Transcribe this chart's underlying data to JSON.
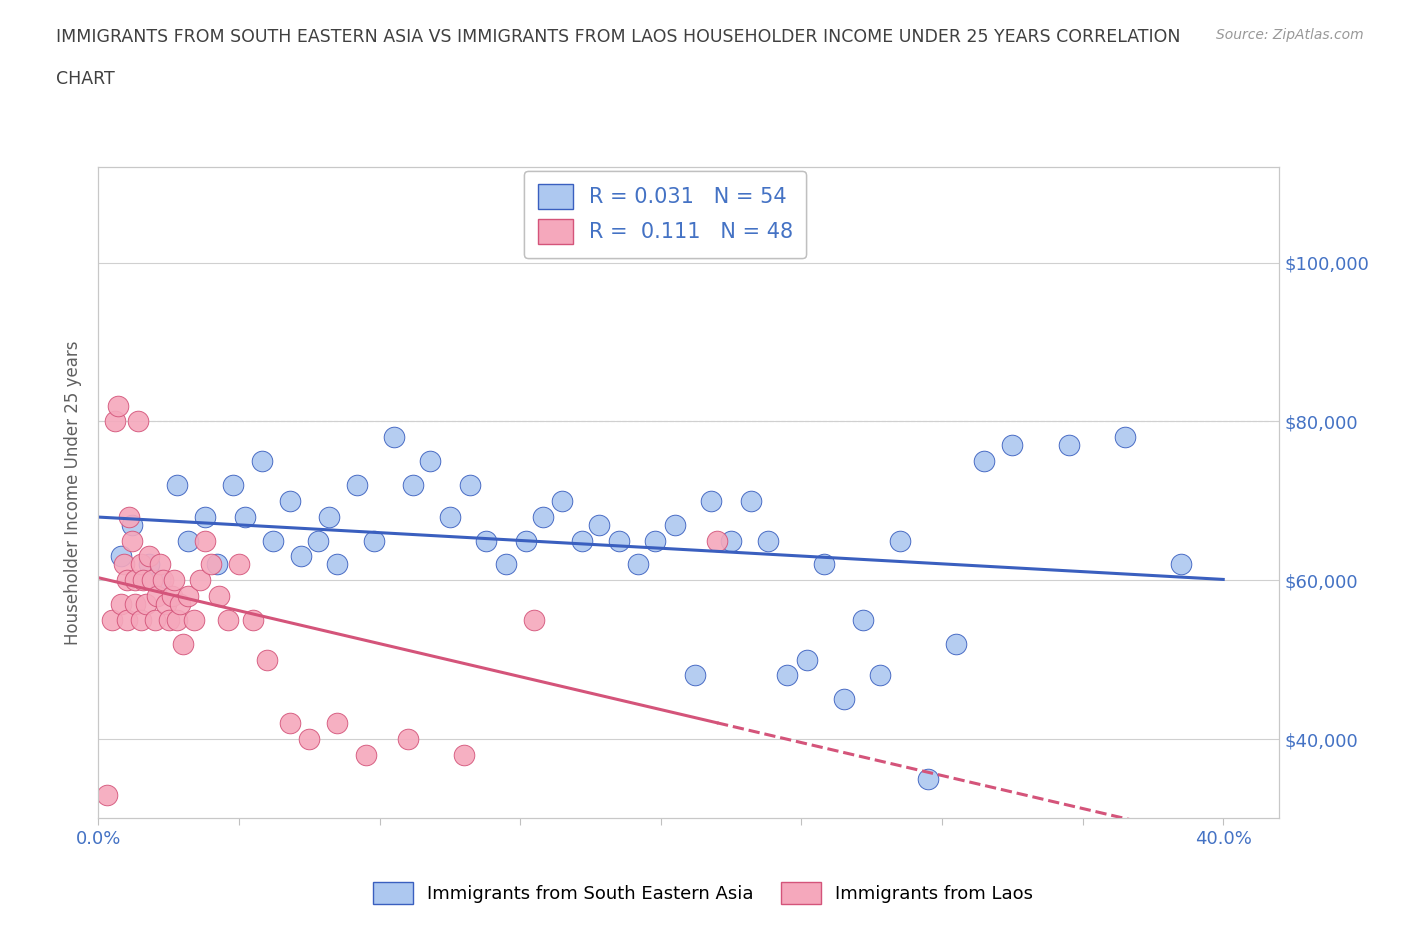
{
  "title_line1": "IMMIGRANTS FROM SOUTH EASTERN ASIA VS IMMIGRANTS FROM LAOS HOUSEHOLDER INCOME UNDER 25 YEARS CORRELATION",
  "title_line2": "CHART",
  "source": "Source: ZipAtlas.com",
  "ylabel": "Householder Income Under 25 years",
  "xlim": [
    0.0,
    0.42
  ],
  "ylim": [
    30000,
    112000
  ],
  "yticks": [
    40000,
    60000,
    80000,
    100000
  ],
  "ytick_labels": [
    "$40,000",
    "$60,000",
    "$80,000",
    "$100,000"
  ],
  "xticks": [
    0.0,
    0.05,
    0.1,
    0.15,
    0.2,
    0.25,
    0.3,
    0.35,
    0.4
  ],
  "legend_label1": "Immigrants from South Eastern Asia",
  "legend_label2": "Immigrants from Laos",
  "R1": 0.031,
  "N1": 54,
  "R2": 0.111,
  "N2": 48,
  "color1": "#adc8f0",
  "color2": "#f5a8bc",
  "line_color1": "#3a5fbf",
  "line_color2": "#d4547a",
  "title_color": "#404040",
  "axis_label_color": "#606060",
  "blue_tick_color": "#4472c4",
  "background_color": "#ffffff",
  "grid_color": "#d0d0d0",
  "sea_x": [
    0.008,
    0.012,
    0.018,
    0.022,
    0.028,
    0.032,
    0.038,
    0.042,
    0.048,
    0.052,
    0.058,
    0.062,
    0.068,
    0.072,
    0.078,
    0.082,
    0.085,
    0.092,
    0.098,
    0.105,
    0.112,
    0.118,
    0.125,
    0.132,
    0.138,
    0.145,
    0.152,
    0.158,
    0.165,
    0.172,
    0.178,
    0.185,
    0.192,
    0.198,
    0.205,
    0.212,
    0.218,
    0.225,
    0.232,
    0.238,
    0.245,
    0.252,
    0.258,
    0.265,
    0.272,
    0.278,
    0.285,
    0.295,
    0.305,
    0.315,
    0.325,
    0.345,
    0.365,
    0.385
  ],
  "sea_y": [
    63000,
    67000,
    62000,
    60000,
    72000,
    65000,
    68000,
    62000,
    72000,
    68000,
    75000,
    65000,
    70000,
    63000,
    65000,
    68000,
    62000,
    72000,
    65000,
    78000,
    72000,
    75000,
    68000,
    72000,
    65000,
    62000,
    65000,
    68000,
    70000,
    65000,
    67000,
    65000,
    62000,
    65000,
    67000,
    48000,
    70000,
    65000,
    70000,
    65000,
    48000,
    50000,
    62000,
    45000,
    55000,
    48000,
    65000,
    35000,
    52000,
    75000,
    77000,
    77000,
    78000,
    62000
  ],
  "laos_x": [
    0.003,
    0.005,
    0.006,
    0.007,
    0.008,
    0.009,
    0.01,
    0.01,
    0.011,
    0.012,
    0.013,
    0.013,
    0.014,
    0.015,
    0.015,
    0.016,
    0.017,
    0.018,
    0.019,
    0.02,
    0.021,
    0.022,
    0.023,
    0.024,
    0.025,
    0.026,
    0.027,
    0.028,
    0.029,
    0.03,
    0.032,
    0.034,
    0.036,
    0.038,
    0.04,
    0.043,
    0.046,
    0.05,
    0.055,
    0.06,
    0.068,
    0.075,
    0.085,
    0.095,
    0.11,
    0.13,
    0.155,
    0.22
  ],
  "laos_y": [
    33000,
    55000,
    80000,
    82000,
    57000,
    62000,
    55000,
    60000,
    68000,
    65000,
    60000,
    57000,
    80000,
    55000,
    62000,
    60000,
    57000,
    63000,
    60000,
    55000,
    58000,
    62000,
    60000,
    57000,
    55000,
    58000,
    60000,
    55000,
    57000,
    52000,
    58000,
    55000,
    60000,
    65000,
    62000,
    58000,
    55000,
    62000,
    55000,
    50000,
    42000,
    40000,
    42000,
    38000,
    40000,
    38000,
    55000,
    65000
  ]
}
